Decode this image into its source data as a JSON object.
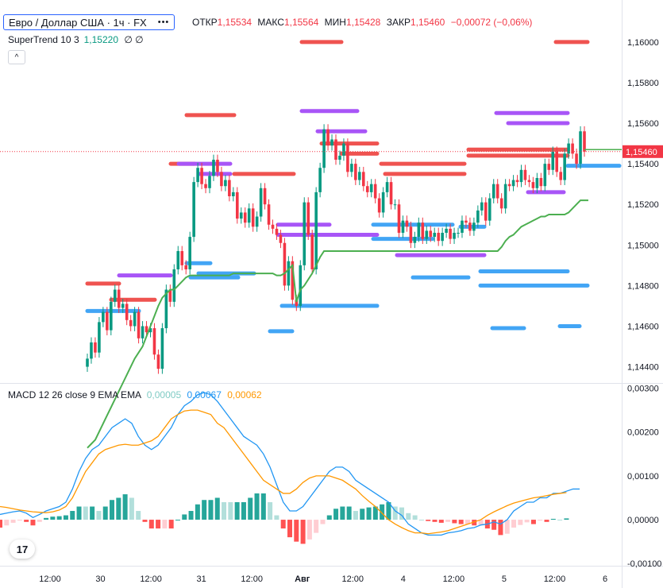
{
  "header": {
    "symbol_label": "Евро / Доллар США · 1ч · FX",
    "menu_dots": "•••",
    "ohlc": [
      {
        "label": "ОТКР",
        "value": "1,15534"
      },
      {
        "label": "МАКС",
        "value": "1,15564"
      },
      {
        "label": "МИН",
        "value": "1,15428"
      },
      {
        "label": "ЗАКР",
        "value": "1,15460"
      }
    ],
    "change": "−0,00072 (−0,06%)"
  },
  "supertrend": {
    "name": "SuperTrend 10 3",
    "value": "1,15220",
    "extra": "∅ ∅"
  },
  "collapse_icon": "chevron-up-icon",
  "macd": {
    "name": "MACD 12 26 close 9 EMA EMA",
    "hist": "0,00005",
    "macd": "0,00067",
    "signal": "0,00062"
  },
  "logo_text": "17",
  "colors": {
    "up": "#089981",
    "down": "#f23645",
    "supertrend": "#4caf50",
    "macd_line": "#2196f3",
    "signal_line": "#ff9800",
    "zone_red": "#ef5350",
    "zone_blue": "#42a5f5",
    "zone_purple": "#a855f7"
  },
  "chart_data": {
    "type": "candlestick",
    "price_axis_labels": [
      "1,16000",
      "1,15800",
      "1,15600",
      "1,15400",
      "1,15200",
      "1,15000",
      "1,14800",
      "1,14600",
      "1,14400"
    ],
    "price_ylim": [
      1.1432,
      1.1616
    ],
    "current_price": "1,15460",
    "supertrend_last": "1,15220",
    "time_axis_labels": [
      "12:00",
      "30",
      "12:00",
      "31",
      "12:00",
      "Авг",
      "12:00",
      "4",
      "12:00",
      "5",
      "12:00",
      "6"
    ],
    "macd_axis_labels": [
      "0,00300",
      "0,00200",
      "0,00100",
      "0,00000",
      "-0,00100"
    ],
    "macd_ylim": [
      -0.00105,
      0.0031
    ],
    "closes": [
      1.1444,
      1.1452,
      1.1447,
      1.1462,
      1.1467,
      1.1458,
      1.1472,
      1.1478,
      1.1469,
      1.1471,
      1.1463,
      1.146,
      1.1467,
      1.1454,
      1.146,
      1.1457,
      1.1459,
      1.1446,
      1.1439,
      1.1459,
      1.1478,
      1.1472,
      1.1488,
      1.1497,
      1.149,
      1.1488,
      1.1504,
      1.1531,
      1.1538,
      1.153,
      1.1528,
      1.1534,
      1.1542,
      1.1536,
      1.1529,
      1.1532,
      1.1524,
      1.1526,
      1.1513,
      1.1516,
      1.1511,
      1.1518,
      1.1509,
      1.1514,
      1.1528,
      1.152,
      1.151,
      1.1508,
      1.1505,
      1.1501,
      1.148,
      1.1492,
      1.1473,
      1.147,
      1.149,
      1.1521,
      1.1505,
      1.1488,
      1.1526,
      1.1538,
      1.1557,
      1.1549,
      1.1552,
      1.1542,
      1.1544,
      1.155,
      1.1536,
      1.154,
      1.1532,
      1.1536,
      1.1529,
      1.1526,
      1.153,
      1.1523,
      1.1516,
      1.1526,
      1.1531,
      1.152,
      1.152,
      1.1506,
      1.1512,
      1.1509,
      1.1501,
      1.1504,
      1.1511,
      1.1503,
      1.1507,
      1.1504,
      1.1506,
      1.1502,
      1.1506,
      1.1508,
      1.1503,
      1.1506,
      1.1506,
      1.1512,
      1.1511,
      1.1507,
      1.1511,
      1.1517,
      1.1521,
      1.1512,
      1.1523,
      1.153,
      1.1523,
      1.1518,
      1.153,
      1.1529,
      1.1532,
      1.1531,
      1.1537,
      1.1532,
      1.1531,
      1.1528,
      1.1533,
      1.1529,
      1.154,
      1.1537,
      1.1546,
      1.1536,
      1.1532,
      1.1545,
      1.155,
      1.1545,
      1.154,
      1.1556,
      1.1546
    ],
    "supertrend": [
      1.14,
      1.1402,
      1.1404,
      1.1408,
      1.1412,
      1.1416,
      1.142,
      1.1424,
      1.1428,
      1.1432,
      1.1436,
      1.144,
      1.1444,
      1.1447,
      1.145,
      1.1455,
      1.146,
      1.1465,
      1.147,
      1.1474,
      1.1476,
      1.1478,
      1.1478,
      1.148,
      1.1482,
      1.1484,
      1.1485,
      1.1485,
      1.1485,
      1.1485,
      1.1485,
      1.1485,
      1.1485,
      1.1485,
      1.1485,
      1.1485,
      1.1485,
      1.1486,
      1.1486,
      1.1486,
      1.1486,
      1.1486,
      1.1486,
      1.1486,
      1.1486,
      1.1486,
      1.1486,
      1.1486,
      1.1485,
      1.1485,
      1.1486,
      1.1488,
      1.149,
      1.1472,
      1.1478,
      1.148,
      1.1483,
      1.1486,
      1.149,
      1.1494,
      1.1497,
      1.1497,
      1.1497,
      1.1497,
      1.1497,
      1.1497,
      1.1497,
      1.1497,
      1.1497,
      1.1497,
      1.1497,
      1.1497,
      1.1497,
      1.1497,
      1.1497,
      1.1497,
      1.1497,
      1.1497,
      1.1497,
      1.1497,
      1.1497,
      1.1497,
      1.1497,
      1.1497,
      1.1497,
      1.1497,
      1.1497,
      1.1497,
      1.1497,
      1.1497,
      1.1497,
      1.1497,
      1.1497,
      1.1497,
      1.1497,
      1.1497,
      1.1497,
      1.1497,
      1.1497,
      1.1497,
      1.1497,
      1.1497,
      1.1497,
      1.1497,
      1.1497,
      1.1499,
      1.1502,
      1.1504,
      1.1505,
      1.1507,
      1.1509,
      1.151,
      1.1511,
      1.1512,
      1.1513,
      1.1514,
      1.1514,
      1.1515,
      1.1515,
      1.1515,
      1.1515,
      1.1515,
      1.1516,
      1.1518,
      1.152,
      1.1522,
      1.1522,
      1.1522
    ],
    "macd_line": [
      0.00012,
      0.00015,
      0.00018,
      0.0002,
      0.00015,
      5e-05,
      0.00012,
      0.0002,
      0.00025,
      0.0003,
      0.0004,
      0.0007,
      0.0011,
      0.0014,
      0.0016,
      0.0017,
      0.0019,
      0.0021,
      0.0022,
      0.0023,
      0.0022,
      0.0019,
      0.0017,
      0.0016,
      0.0017,
      0.0019,
      0.0021,
      0.0024,
      0.0026,
      0.0027,
      0.00285,
      0.0029,
      0.00285,
      0.0027,
      0.0025,
      0.0023,
      0.0021,
      0.0019,
      0.0018,
      0.0017,
      0.0015,
      0.0012,
      0.0008,
      0.0004,
      0.0002,
      0.0002,
      0.0003,
      0.0005,
      0.0007,
      0.0009,
      0.0011,
      0.0012,
      0.0012,
      0.0011,
      0.0009,
      0.0008,
      0.0007,
      0.0006,
      0.0005,
      0.0004,
      0.0002,
      0.0001,
      -0.0001,
      -0.0002,
      -0.0003,
      -0.00035,
      -0.00035,
      -0.00035,
      -0.0003,
      -0.00028,
      -0.00025,
      -0.0002,
      -0.00018,
      -0.00012,
      -0.0001,
      -5e-05,
      -0.0001,
      0.0,
      0.0002,
      0.0003,
      0.0004,
      0.0004,
      0.0005,
      0.0005,
      0.0006,
      0.0006,
      0.00065,
      0.0007,
      0.0007
    ],
    "signal_line": [
      0.0003,
      0.00028,
      0.00025,
      0.00022,
      0.0002,
      0.00018,
      0.00017,
      0.00016,
      0.00018,
      0.00022,
      0.0003,
      0.0005,
      0.0008,
      0.0011,
      0.0013,
      0.0015,
      0.0016,
      0.00165,
      0.0017,
      0.00172,
      0.0017,
      0.0017,
      0.00175,
      0.0018,
      0.0019,
      0.0021,
      0.0023,
      0.0024,
      0.00248,
      0.0025,
      0.0025,
      0.00245,
      0.0024,
      0.0022,
      0.0021,
      0.0019,
      0.0017,
      0.0015,
      0.0013,
      0.0011,
      0.0009,
      0.0008,
      0.0007,
      0.0006,
      0.0006,
      0.0007,
      0.00085,
      0.00095,
      0.001,
      0.001,
      0.001,
      0.00095,
      0.0009,
      0.0008,
      0.0007,
      0.00055,
      0.00042,
      0.0003,
      0.00015,
      0.0,
      -0.0001,
      -0.00018,
      -0.00025,
      -0.0003,
      -0.0003,
      -0.00032,
      -0.0003,
      -0.00028,
      -0.00025,
      -0.0002,
      -0.00015,
      -0.0001,
      -5e-05,
      0.0,
      0.0001,
      0.00018,
      0.00025,
      0.00032,
      0.00038,
      0.00042,
      0.00046,
      0.0005,
      0.00052,
      0.00055,
      0.00058,
      0.0006,
      0.00062
    ]
  }
}
